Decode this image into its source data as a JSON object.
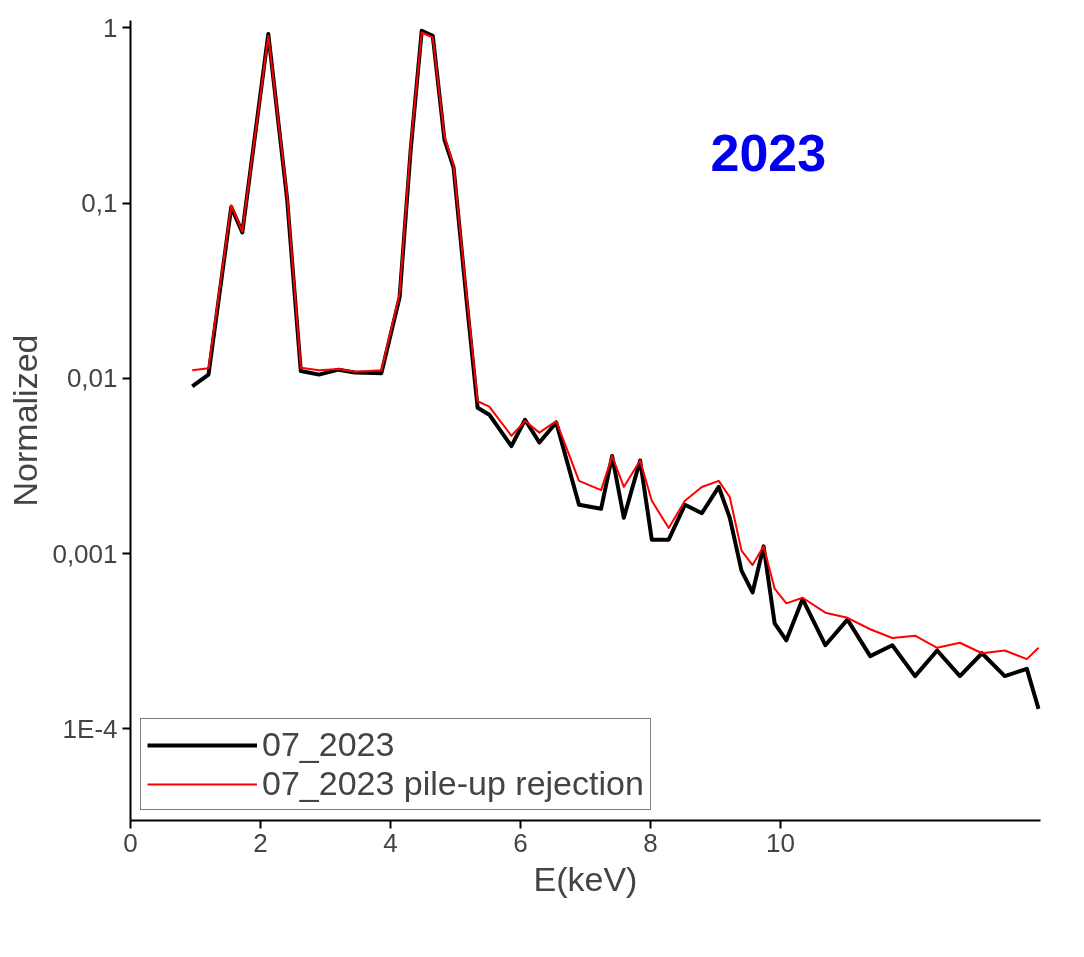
{
  "chart_data": {
    "type": "line",
    "xlabel": "E(keV)",
    "ylabel": "Normalized",
    "log": "y",
    "xlim": [
      0,
      14
    ],
    "ylim": [
      3e-05,
      1.1
    ],
    "xticks": [
      0,
      2,
      4,
      6,
      8,
      10
    ],
    "yticks": [
      {
        "value": 1,
        "label": "1"
      },
      {
        "value": 0.1,
        "label": "0,1"
      },
      {
        "value": 0.01,
        "label": "0,01"
      },
      {
        "value": 0.001,
        "label": "0,001"
      },
      {
        "value": 0.0001,
        "label": "1E-4"
      }
    ],
    "grid": false,
    "legend": "bottom left",
    "annotations": [
      "2023"
    ],
    "x": [
      0.95,
      1.2,
      1.55,
      1.72,
      2.12,
      2.41,
      2.62,
      2.9,
      3.2,
      3.45,
      3.86,
      4.14,
      4.31,
      4.48,
      4.65,
      4.83,
      4.97,
      5.17,
      5.34,
      5.52,
      5.86,
      6.07,
      6.29,
      6.55,
      6.9,
      7.24,
      7.41,
      7.59,
      7.84,
      8.02,
      8.28,
      8.53,
      8.79,
      9.05,
      9.22,
      9.4,
      9.57,
      9.74,
      9.91,
      10.09,
      10.34,
      10.69,
      11.03,
      11.38,
      11.72,
      12.07,
      12.41,
      12.76,
      13.1,
      13.45,
      13.79,
      13.97
    ],
    "series": [
      {
        "name": "07_2023",
        "color": "#000000",
        "values": [
          0.009,
          0.0105,
          0.095,
          0.068,
          0.92,
          0.105,
          0.011,
          0.0105,
          0.0112,
          0.0108,
          0.0107,
          0.029,
          0.2,
          0.96,
          0.9,
          0.23,
          0.16,
          0.028,
          0.0068,
          0.0062,
          0.0041,
          0.0058,
          0.0043,
          0.0056,
          0.0019,
          0.0018,
          0.0036,
          0.0016,
          0.0034,
          0.0012,
          0.0012,
          0.0019,
          0.0017,
          0.0024,
          0.0016,
          0.0008,
          0.0006,
          0.0011,
          0.0004,
          0.00032,
          0.00055,
          0.0003,
          0.00042,
          0.00026,
          0.0003,
          0.0002,
          0.00028,
          0.0002,
          0.00027,
          0.0002,
          0.00022,
          0.00013
        ]
      },
      {
        "name": "07_2023 pile-up rejection",
        "color": "#ff0000",
        "values": [
          0.0111,
          0.0114,
          0.097,
          0.0687,
          0.9,
          0.11,
          0.0115,
          0.0111,
          0.0113,
          0.0109,
          0.0111,
          0.0304,
          0.212,
          0.94,
          0.88,
          0.24,
          0.164,
          0.03,
          0.0074,
          0.0069,
          0.0047,
          0.0057,
          0.0049,
          0.0057,
          0.0026,
          0.0023,
          0.0036,
          0.0024,
          0.0034,
          0.002,
          0.0014,
          0.002,
          0.0024,
          0.0026,
          0.0021,
          0.00104,
          0.00086,
          0.0011,
          0.00063,
          0.00052,
          0.00056,
          0.00046,
          0.00043,
          0.00037,
          0.00033,
          0.00034,
          0.00029,
          0.00031,
          0.00027,
          0.00028,
          0.00025,
          0.00029
        ]
      }
    ]
  }
}
